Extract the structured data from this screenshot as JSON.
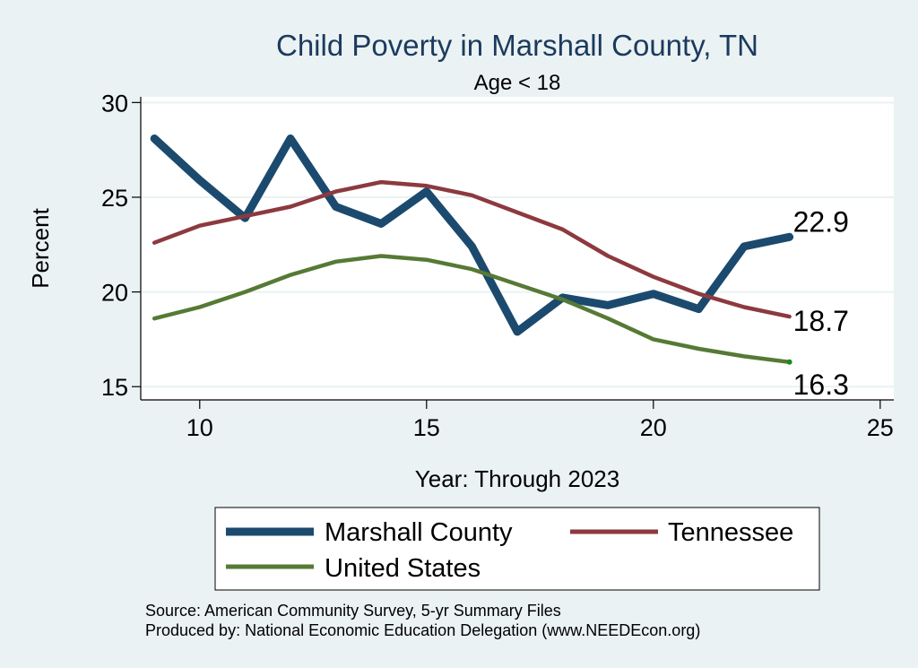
{
  "chart_data": {
    "type": "line",
    "title": "Child Poverty in Marshall County, TN",
    "subtitle": "Age < 18",
    "xlabel": "Year: Through 2023",
    "ylabel": "Percent",
    "xlim": [
      8.7,
      25.3
    ],
    "ylim": [
      14.3,
      30.3
    ],
    "xticks": [
      10,
      15,
      20,
      25
    ],
    "yticks": [
      15,
      20,
      25,
      30
    ],
    "x": [
      9,
      10,
      11,
      12,
      13,
      14,
      15,
      16,
      17,
      18,
      19,
      20,
      21,
      22,
      23
    ],
    "series": [
      {
        "name": "Marshall County",
        "color": "#1b4a6e",
        "values": [
          28.1,
          25.9,
          23.9,
          28.1,
          24.5,
          23.6,
          25.3,
          22.4,
          17.9,
          19.7,
          19.3,
          19.9,
          19.1,
          22.4,
          22.9
        ],
        "end_label": "22.9"
      },
      {
        "name": "Tennessee",
        "color": "#8c3a3f",
        "values": [
          22.6,
          23.5,
          24.0,
          24.5,
          25.3,
          25.8,
          25.6,
          25.1,
          24.2,
          23.3,
          21.9,
          20.8,
          19.9,
          19.2,
          18.7
        ],
        "end_label": "18.7"
      },
      {
        "name": "United States",
        "color": "#567a35",
        "values": [
          18.6,
          19.2,
          20.0,
          20.9,
          21.6,
          21.9,
          21.7,
          21.2,
          20.4,
          19.6,
          18.6,
          17.5,
          17.0,
          16.6,
          16.3
        ],
        "end_label": "16.3"
      }
    ],
    "legend": {
      "position": "bottom",
      "entries": [
        "Marshall County",
        "Tennessee",
        "United States"
      ]
    },
    "notes": [
      "Source: American Community Survey, 5-yr Summary Files",
      "Produced by: National Economic Education Delegation (www.NEEDEcon.org)"
    ],
    "grid": true
  }
}
